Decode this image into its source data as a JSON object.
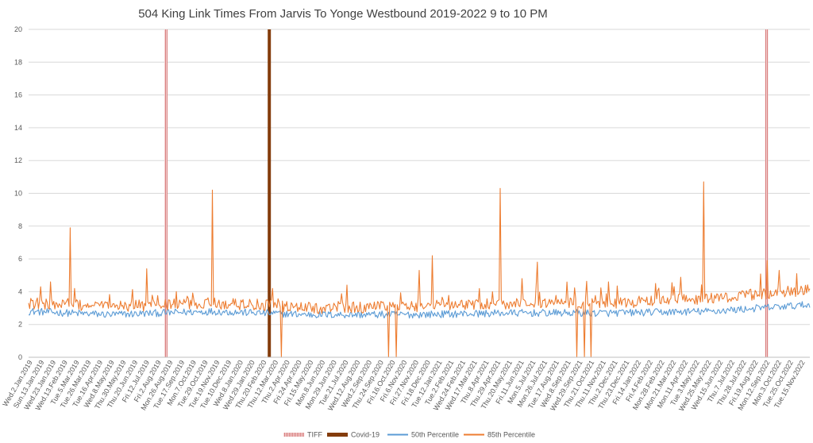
{
  "chart_data": {
    "type": "line",
    "title": "504 King Link Times From Jarvis To Yonge Westbound 2019-2022 9 to 10 PM",
    "xlabel": "",
    "ylabel": "",
    "ylim": [
      0,
      20
    ],
    "yticks": [
      "0",
      "2",
      "4",
      "6",
      "8",
      "10",
      "12",
      "14",
      "16",
      "18",
      "20"
    ],
    "grid": "horizontal",
    "legend_position": "bottom",
    "x_start": "2019-01-02",
    "x_end": "2022-11-30",
    "xtick_labels": [
      "Wed.2.Jan.2019",
      "Sun.13.Jan.2019",
      "Wed.23.Jan.2019",
      "Wed.13.Feb.2019",
      "Tue.5.Mar.2019",
      "Tue.26.Mar.2019",
      "Tue.16.Apr.2019",
      "Wed.8.May.2019",
      "Thu.30.May.2019",
      "Thu.20.Jun.2019",
      "Fri.12.Jul.2019",
      "Fri.2.Aug.2019",
      "Mon.26.Aug.2019",
      "Tue.17.Sep.2019",
      "Mon.7.Oct.2019",
      "Tue.29.Oct.2019",
      "Tue.19.Nov.2019",
      "Tue.10.Dec.2019",
      "Wed.8.Jan.2020",
      "Wed.29.Jan.2020",
      "Thu.20.Feb.2020",
      "Thu.12.Mar.2020",
      "Thu.2.Apr.2020",
      "Fri.24.Apr.2020",
      "Fri.15.May.2020",
      "Mon.8.Jun.2020",
      "Mon.29.Jun.2020",
      "Tue.21.Jul.2020",
      "Wed.12.Aug.2020",
      "Wed.2.Sep.2020",
      "Thu.24.Sep.2020",
      "Fri.16.Oct.2020",
      "Fri.6.Nov.2020",
      "Fri.27.Nov.2020",
      "Fri.18.Dec.2020",
      "Tue.12.Jan.2021",
      "Tue.2.Feb.2021",
      "Wed.24.Feb.2021",
      "Wed.17.Mar.2021",
      "Thu.8.Apr.2021",
      "Thu.29.Apr.2021",
      "Thu.20.May.2021",
      "Fri.11.Jun.2021",
      "Mon.5.Jul.2021",
      "Mon.26.Jul.2021",
      "Tue.17.Aug.2021",
      "Wed.8.Sep.2021",
      "Wed.29.Sep.2021",
      "Thu.21.Oct.2021",
      "Thu.11.Nov.2021",
      "Thu.2.Dec.2021",
      "Thu.23.Dec.2021",
      "Fri.14.Jan.2022",
      "Fri.4.Feb.2022",
      "Mon.28.Feb.2022",
      "Mon.21.Mar.2022",
      "Mon.11.Apr.2022",
      "Tue.3.May.2022",
      "Wed.25.May.2022",
      "Wed.15.Jun.2022",
      "Thu.7.Jul.2022",
      "Thu.28.Jul.2022",
      "Fri.19.Aug.2022",
      "Mon.12.Sep.2022",
      "Mon.3.Oct.2022",
      "Tue.25.Oct.2022",
      "Tue.15.Nov.2022"
    ],
    "event_markers": [
      {
        "name": "TIFF",
        "date": "2019-09-10",
        "color": "#e8a8a8",
        "pattern": "hatched"
      },
      {
        "name": "Covid-19",
        "date": "2020-03-17",
        "color": "#843c0c",
        "pattern": "solid"
      },
      {
        "name": "TIFF",
        "date": "2022-09-12",
        "color": "#e8a8a8",
        "pattern": "hatched"
      }
    ],
    "series": [
      {
        "name": "50th Percentile",
        "color": "#5b9bd5",
        "baseline": [
          {
            "date": "2019-01-02",
            "value": 2.8
          },
          {
            "date": "2019-06-01",
            "value": 2.6
          },
          {
            "date": "2019-12-01",
            "value": 2.8
          },
          {
            "date": "2020-03-01",
            "value": 2.7
          },
          {
            "date": "2020-06-01",
            "value": 2.6
          },
          {
            "date": "2020-12-01",
            "value": 2.6
          },
          {
            "date": "2021-06-01",
            "value": 2.7
          },
          {
            "date": "2021-12-01",
            "value": 2.7
          },
          {
            "date": "2022-06-01",
            "value": 2.8
          },
          {
            "date": "2022-11-30",
            "value": 3.2
          }
        ]
      },
      {
        "name": "85th Percentile",
        "color": "#ed7d31",
        "baseline": [
          {
            "date": "2019-01-02",
            "value": 3.3
          },
          {
            "date": "2019-06-01",
            "value": 3.1
          },
          {
            "date": "2019-12-01",
            "value": 3.3
          },
          {
            "date": "2020-03-01",
            "value": 3.2
          },
          {
            "date": "2020-06-01",
            "value": 3.0
          },
          {
            "date": "2020-12-01",
            "value": 3.1
          },
          {
            "date": "2021-06-01",
            "value": 3.3
          },
          {
            "date": "2021-12-01",
            "value": 3.3
          },
          {
            "date": "2022-06-01",
            "value": 3.6
          },
          {
            "date": "2022-11-30",
            "value": 4.1
          }
        ],
        "peaks": [
          {
            "date": "2019-01-23",
            "value": 4.3
          },
          {
            "date": "2019-02-10",
            "value": 4.6
          },
          {
            "date": "2019-03-19",
            "value": 7.9
          },
          {
            "date": "2019-03-26",
            "value": 4.2
          },
          {
            "date": "2019-08-06",
            "value": 5.4
          },
          {
            "date": "2019-12-04",
            "value": 10.2
          },
          {
            "date": "2020-03-23",
            "value": 4.2
          },
          {
            "date": "2020-08-05",
            "value": 4.4
          },
          {
            "date": "2020-12-15",
            "value": 5.3
          },
          {
            "date": "2021-01-08",
            "value": 6.2
          },
          {
            "date": "2021-05-13",
            "value": 10.3
          },
          {
            "date": "2021-06-22",
            "value": 4.8
          },
          {
            "date": "2021-07-20",
            "value": 5.8
          },
          {
            "date": "2021-11-27",
            "value": 4.6
          },
          {
            "date": "2022-02-20",
            "value": 4.5
          },
          {
            "date": "2022-05-20",
            "value": 10.7
          },
          {
            "date": "2022-09-12",
            "value": 5.9
          },
          {
            "date": "2022-10-05",
            "value": 5.3
          },
          {
            "date": "2022-11-05",
            "value": 5.1
          }
        ],
        "dropouts": [
          {
            "date": "2020-04-08",
            "value": 0
          },
          {
            "date": "2020-10-20",
            "value": 0
          },
          {
            "date": "2020-11-03",
            "value": 0
          },
          {
            "date": "2021-09-29",
            "value": 0
          },
          {
            "date": "2021-10-14",
            "value": 0
          },
          {
            "date": "2021-10-26",
            "value": 0
          }
        ]
      }
    ],
    "legend": [
      {
        "label": "TIFF",
        "swatch": "hatched",
        "color": "#e8a8a8"
      },
      {
        "label": "Covid-19",
        "swatch": "bar",
        "color": "#843c0c"
      },
      {
        "label": "50th Percentile",
        "swatch": "line",
        "color": "#5b9bd5"
      },
      {
        "label": "85th Percentile",
        "swatch": "line",
        "color": "#ed7d31"
      }
    ]
  }
}
